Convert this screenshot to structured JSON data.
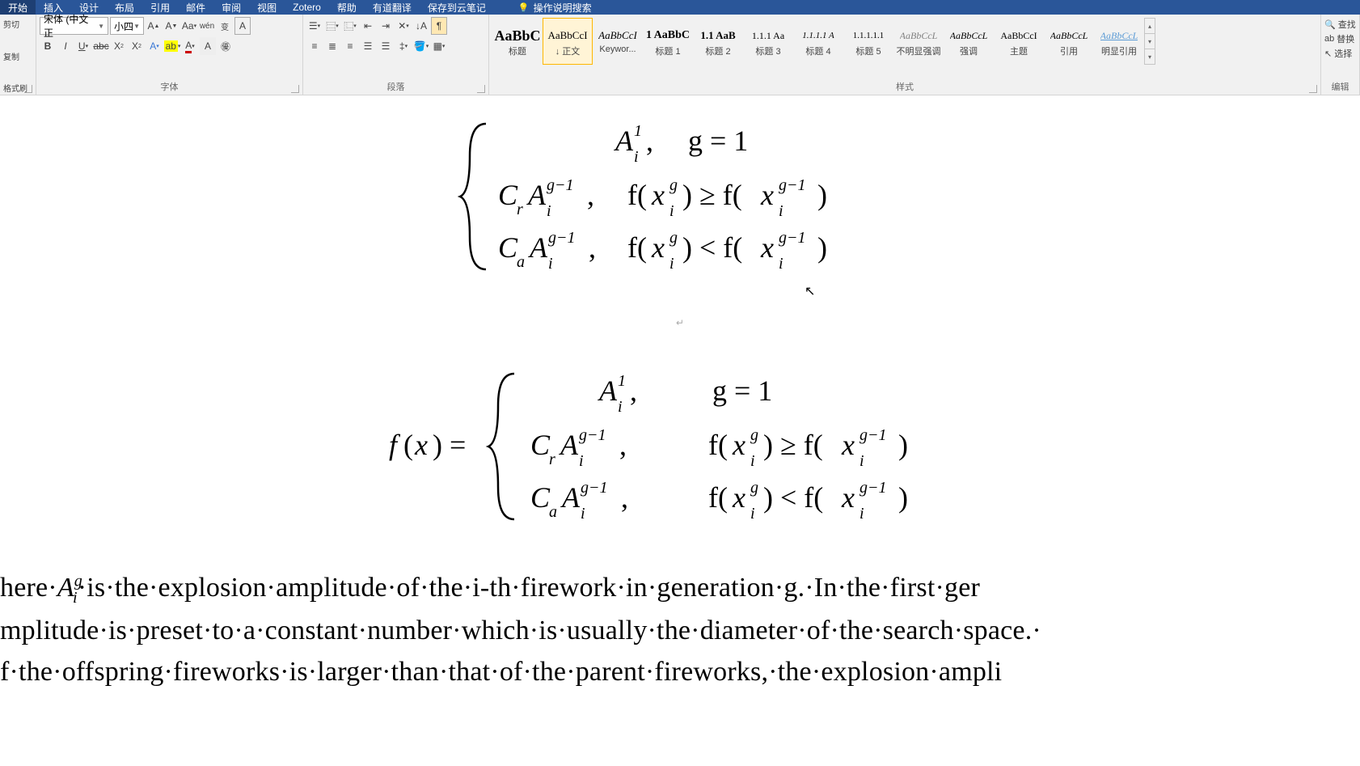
{
  "tabs": {
    "home": "开始",
    "insert": "插入",
    "design": "设计",
    "layout": "布局",
    "references": "引用",
    "mailings": "邮件",
    "review": "审阅",
    "view": "视图",
    "zotero": "Zotero",
    "help": "帮助",
    "youdao": "有道翻译",
    "save_cloud": "保存到云笔记",
    "tell_me": "操作说明搜索"
  },
  "clipboard": {
    "cut": "剪切",
    "copy": "复制",
    "paste_fmt": "格式刷"
  },
  "font": {
    "name": "宋体 (中文正",
    "size": "小四",
    "group_label": "字体"
  },
  "paragraph": {
    "group_label": "段落"
  },
  "styles": {
    "group_label": "样式",
    "items": [
      {
        "preview": "AaBbC",
        "caption": "标题",
        "size": "18px",
        "color": "#000",
        "bold": true
      },
      {
        "preview": "AaBbCcI",
        "caption": "↓ 正文",
        "size": "13px",
        "color": "#000",
        "selected": true
      },
      {
        "preview": "AaBbCcI",
        "caption": "Keywor...",
        "size": "13px",
        "color": "#000",
        "italic": true
      },
      {
        "preview": "1 AaBbC",
        "caption": "标题 1",
        "size": "14px",
        "color": "#000",
        "bold": true
      },
      {
        "preview": "1.1 AaB",
        "caption": "标题 2",
        "size": "13px",
        "color": "#000",
        "bold": true
      },
      {
        "preview": "1.1.1 Aa",
        "caption": "标题 3",
        "size": "12px",
        "color": "#000"
      },
      {
        "preview": "1.1.1.1 A",
        "caption": "标题 4",
        "size": "11px",
        "color": "#000",
        "italic": true
      },
      {
        "preview": "1.1.1.1.1",
        "caption": "标题 5",
        "size": "11px",
        "color": "#000"
      },
      {
        "preview": "AaBbCcL",
        "caption": "不明显强调",
        "size": "12px",
        "color": "#808080",
        "italic": true
      },
      {
        "preview": "AaBbCcL",
        "caption": "强调",
        "size": "12px",
        "color": "#000",
        "italic": true
      },
      {
        "preview": "AaBbCcI",
        "caption": "主题",
        "size": "12px",
        "color": "#000"
      },
      {
        "preview": "AaBbCcL",
        "caption": "引用",
        "size": "12px",
        "color": "#000",
        "italic": true
      },
      {
        "preview": "AaBbCcL",
        "caption": "明显引用",
        "size": "12px",
        "color": "#5b9bd5",
        "italic": true,
        "underline": true
      }
    ]
  },
  "editing": {
    "find": "查找",
    "replace": "替换",
    "select": "选择",
    "group_label": "编辑"
  },
  "equations": {
    "eq1": {
      "line1": {
        "body": "A_i^1,",
        "cond": "g = 1"
      },
      "line2": {
        "body": "C_r A_i^{g-1},",
        "cond": "f(x_i^g) ≥ f(x_i^{g-1})"
      },
      "line3": {
        "body": "C_a A_i^{g-1},",
        "cond": "f(x_i^g) < f(x_i^{g-1})"
      }
    },
    "eq2": {
      "lhs": "f(x) =",
      "line1": {
        "body": "A_i^1,",
        "cond": "g = 1"
      },
      "line2": {
        "body": "C_r A_i^{g-1},",
        "cond": "f(x_i^g) ≥ f(x_i^{g-1})"
      },
      "line3": {
        "body": "C_a A_i^{g-1},",
        "cond": "f(x_i^g) < f(x_i^{g-1})"
      }
    },
    "brace_color": "#000000",
    "math_color": "#000000",
    "math_font": "Cambria Math"
  },
  "body_text": {
    "line1": "here A_i^g is the explosion amplitude of the i-th firework in generation g. In the first ger",
    "line2": "mplitude is preset to a constant number which is usually the diameter of the search space.",
    "line3": "f the offspring fireworks is larger than that of the parent fireworks, the explosion ampli"
  },
  "colors": {
    "titlebar_bg": "#2a5699",
    "titlebar_active": "#1e3f73",
    "ribbon_bg": "#f1f1f1",
    "border": "#d4d4d4",
    "doc_bg": "#ffffff",
    "text": "#000000",
    "selected_border": "#ffb700",
    "selected_bg": "#fff4d6"
  }
}
